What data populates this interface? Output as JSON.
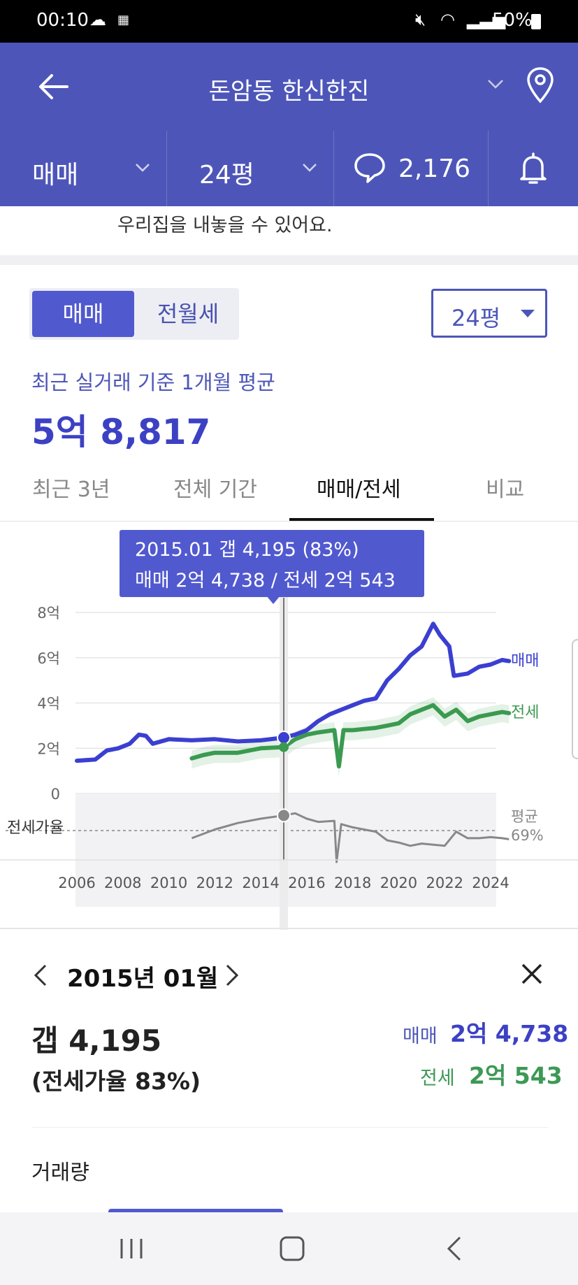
{
  "status_bar": {
    "time": "00:10",
    "battery": "50%"
  },
  "header": {
    "title": "돈암동 한신한진"
  },
  "filters": {
    "deal_type": "매매",
    "size": "24평",
    "comments": "2,176"
  },
  "notice": "우리집을 내놓을 수 있어요.",
  "toggle": {
    "active": "매매",
    "inactive": "전월세"
  },
  "size_select": "24평",
  "summary": {
    "subtitle": "최근 실거래 기준 1개월 평균",
    "price": "5억 8,817"
  },
  "tabs": [
    {
      "label": "최근 3년"
    },
    {
      "label": "전체 기간"
    },
    {
      "label": "매매/전세"
    },
    {
      "label": "비교"
    }
  ],
  "tooltip": {
    "line1": "2015.01  갭 4,195 (83%)",
    "line2": "매매 2억 4,738 / 전세 2억 543"
  },
  "chart_data": {
    "type": "line",
    "x_ticks": [
      "2006",
      "2008",
      "2010",
      "2012",
      "2014",
      "2016",
      "2018",
      "2020",
      "2022",
      "2024"
    ],
    "y_ticks": [
      "8억",
      "6억",
      "4억",
      "2억",
      "0"
    ],
    "ratio_label": "전세가율",
    "avg_label": "평균",
    "avg_value": "69%",
    "colors": {
      "sale": "#3b3fd0",
      "jeonse": "#3a9a50",
      "ratio": "#888888"
    },
    "series": [
      {
        "name": "매매",
        "points": [
          [
            2006.0,
            1.45
          ],
          [
            2006.8,
            1.5
          ],
          [
            2007.3,
            1.9
          ],
          [
            2007.8,
            2.0
          ],
          [
            2008.3,
            2.2
          ],
          [
            2008.7,
            2.6
          ],
          [
            2009.0,
            2.55
          ],
          [
            2009.3,
            2.2
          ],
          [
            2010,
            2.4
          ],
          [
            2011,
            2.35
          ],
          [
            2012,
            2.4
          ],
          [
            2013,
            2.3
          ],
          [
            2014,
            2.35
          ],
          [
            2015.0,
            2.47
          ],
          [
            2015.5,
            2.6
          ],
          [
            2016,
            2.8
          ],
          [
            2016.5,
            3.2
          ],
          [
            2017,
            3.5
          ],
          [
            2017.5,
            3.7
          ],
          [
            2018,
            3.9
          ],
          [
            2018.5,
            4.1
          ],
          [
            2019,
            4.2
          ],
          [
            2019.5,
            5.0
          ],
          [
            2020,
            5.5
          ],
          [
            2020.5,
            6.1
          ],
          [
            2021,
            6.5
          ],
          [
            2021.5,
            7.5
          ],
          [
            2021.8,
            7.0
          ],
          [
            2022.2,
            6.5
          ],
          [
            2022.4,
            5.2
          ],
          [
            2023,
            5.3
          ],
          [
            2023.5,
            5.6
          ],
          [
            2024,
            5.7
          ],
          [
            2024.5,
            5.9
          ],
          [
            2024.8,
            5.85
          ]
        ]
      },
      {
        "name": "전세",
        "points": [
          [
            2011.0,
            1.55
          ],
          [
            2011.5,
            1.7
          ],
          [
            2012,
            1.8
          ],
          [
            2013,
            1.8
          ],
          [
            2014,
            2.0
          ],
          [
            2015.0,
            2.05
          ],
          [
            2015.5,
            2.4
          ],
          [
            2016,
            2.6
          ],
          [
            2016.5,
            2.7
          ],
          [
            2017.2,
            2.8
          ],
          [
            2017.4,
            1.2
          ],
          [
            2017.6,
            2.8
          ],
          [
            2018,
            2.8
          ],
          [
            2018.5,
            2.85
          ],
          [
            2019,
            2.9
          ],
          [
            2019.5,
            3.0
          ],
          [
            2020,
            3.1
          ],
          [
            2020.5,
            3.5
          ],
          [
            2021,
            3.7
          ],
          [
            2021.5,
            3.9
          ],
          [
            2022,
            3.4
          ],
          [
            2022.5,
            3.7
          ],
          [
            2023,
            3.2
          ],
          [
            2023.5,
            3.4
          ],
          [
            2024,
            3.5
          ],
          [
            2024.5,
            3.6
          ],
          [
            2024.8,
            3.55
          ]
        ]
      },
      {
        "name": "전세가율",
        "points": [
          [
            2011.0,
            62
          ],
          [
            2012,
            70
          ],
          [
            2013,
            76
          ],
          [
            2014,
            80
          ],
          [
            2015.0,
            83
          ],
          [
            2015.5,
            85
          ],
          [
            2016,
            80
          ],
          [
            2016.5,
            77
          ],
          [
            2017.2,
            78
          ],
          [
            2017.3,
            40
          ],
          [
            2017.5,
            75
          ],
          [
            2018,
            72
          ],
          [
            2018.5,
            70
          ],
          [
            2019,
            68
          ],
          [
            2019.5,
            60
          ],
          [
            2020,
            58
          ],
          [
            2020.5,
            55
          ],
          [
            2021,
            57
          ],
          [
            2022,
            55
          ],
          [
            2022.5,
            68
          ],
          [
            2023,
            62
          ],
          [
            2023.5,
            62
          ],
          [
            2024,
            63
          ],
          [
            2024.5,
            62
          ],
          [
            2024.8,
            61
          ]
        ]
      }
    ]
  },
  "detail": {
    "date": "2015년 01월",
    "gap": "갭 4,195",
    "ratio": "(전세가율 83%)",
    "sale_label": "매매",
    "sale_value": "2억 4,738",
    "jeonse_label": "전세",
    "jeonse_value": "2억 543"
  },
  "volume_label": "거래량"
}
